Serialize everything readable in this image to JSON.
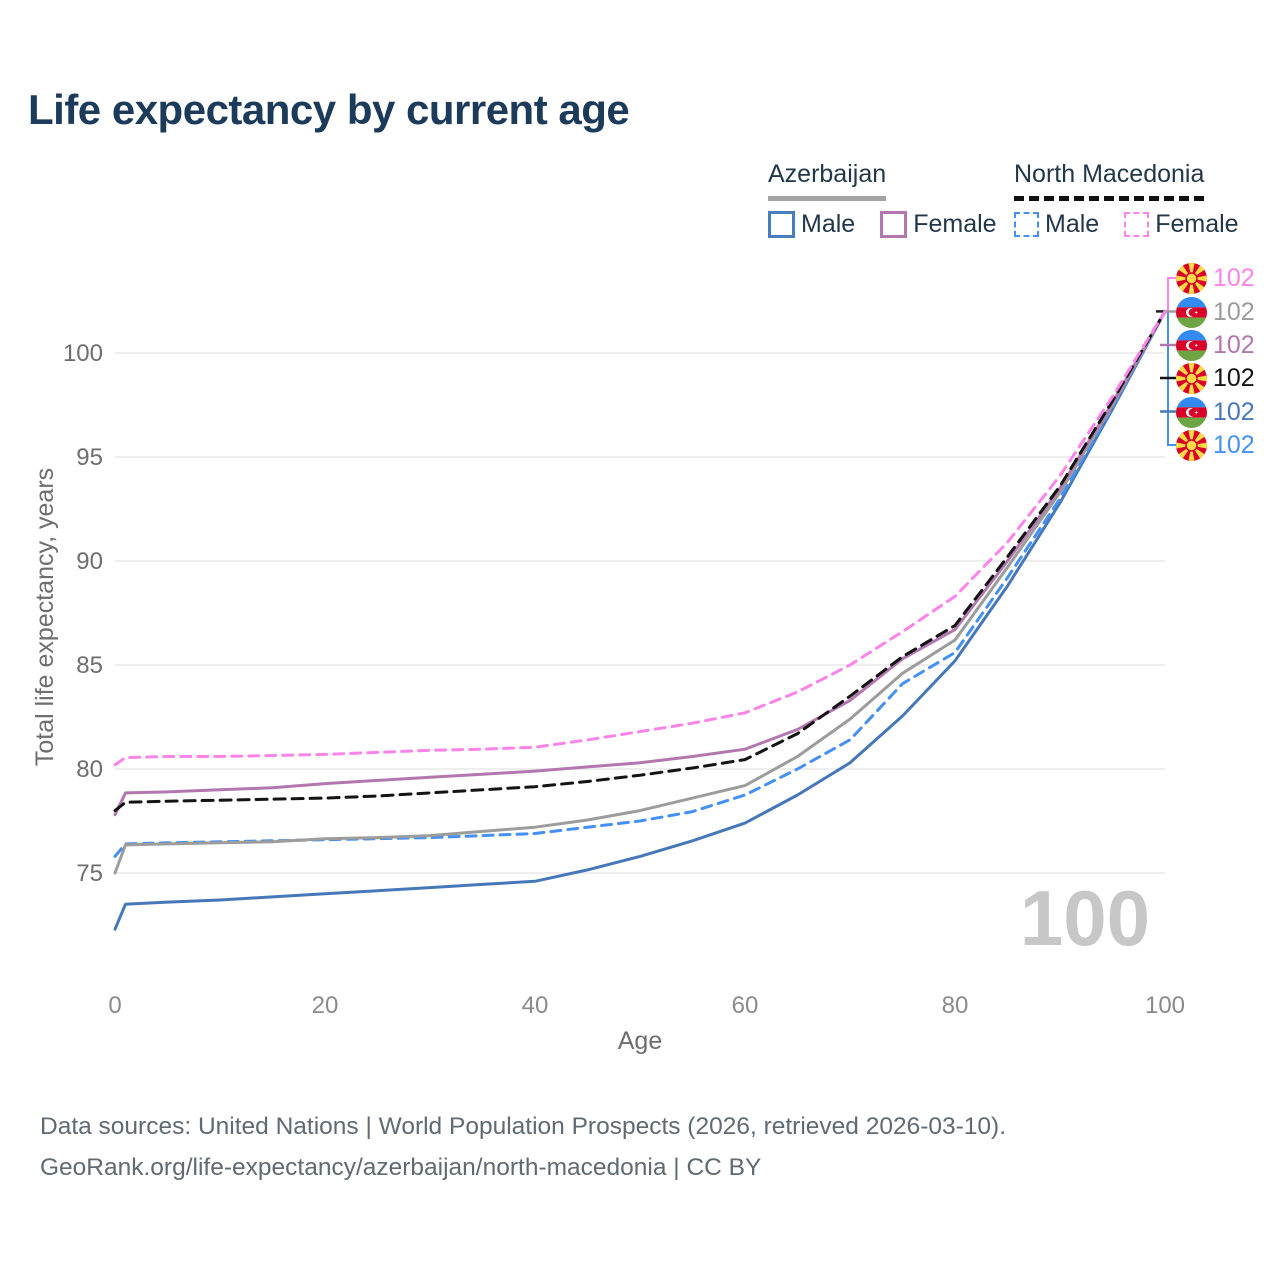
{
  "page": {
    "title": "Life expectancy by current age",
    "footer": {
      "line1": "Data sources: United Nations | World Population Prospects (2026, retrieved 2026-03-10).",
      "line2": "GeoRank.org/life-expectancy/azerbaijan/north-macedonia | CC BY"
    }
  },
  "legend": {
    "groups": [
      {
        "label": "Azerbaijan",
        "line_style": "solid",
        "underline_color": "#a3a3a3",
        "items": [
          {
            "label": "Male",
            "color": "#4a7cc0"
          },
          {
            "label": "Female",
            "color": "#b377af"
          }
        ]
      },
      {
        "label": "North Macedonia",
        "line_style": "dashed",
        "underline_color": "#111111",
        "items": [
          {
            "label": "Male",
            "color": "#4590f5"
          },
          {
            "label": "Female",
            "color": "#fb84e9"
          }
        ]
      }
    ]
  },
  "chart_data": {
    "type": "line",
    "title": "Life expectancy by current age",
    "xlabel": "Age",
    "ylabel": "Total life expectancy, years",
    "x_ticks": [
      0,
      20,
      40,
      60,
      80,
      100
    ],
    "y_ticks": [
      75,
      80,
      85,
      90,
      95,
      100
    ],
    "xlim": [
      0,
      100
    ],
    "ylim": [
      70,
      103
    ],
    "grid": "horizontal-only",
    "legend_position": "top-right",
    "age_counter_watermark": "100",
    "ages": [
      0,
      1,
      5,
      10,
      15,
      20,
      25,
      30,
      35,
      40,
      45,
      50,
      55,
      60,
      65,
      70,
      75,
      80,
      85,
      90,
      95,
      100
    ],
    "series": [
      {
        "country": "Azerbaijan",
        "label": "Male",
        "color": "#4678b9",
        "dash": null,
        "values": [
          72.3,
          73.5,
          73.6,
          73.7,
          73.85,
          74.0,
          74.15,
          74.3,
          74.45,
          74.6,
          75.15,
          75.8,
          76.55,
          77.4,
          78.75,
          80.3,
          82.55,
          85.2,
          88.8,
          92.8,
          97.3,
          102
        ]
      },
      {
        "country": "North Macedonia",
        "label": "Male",
        "color": "#4590f5",
        "dash": "10 7",
        "values": [
          75.8,
          76.4,
          76.45,
          76.5,
          76.55,
          76.6,
          76.65,
          76.7,
          76.8,
          76.9,
          77.2,
          77.5,
          77.95,
          78.75,
          80.0,
          81.4,
          84.1,
          85.6,
          89.2,
          93.0,
          97.4,
          102
        ]
      },
      {
        "country": "Azerbaijan",
        "label": "Azerbaijan",
        "color": "#9c9c9c",
        "dash": null,
        "values": [
          75.0,
          76.35,
          76.4,
          76.45,
          76.5,
          76.65,
          76.7,
          76.8,
          77.0,
          77.2,
          77.55,
          78.0,
          78.6,
          79.2,
          80.6,
          82.4,
          84.6,
          86.2,
          89.7,
          93.3,
          97.5,
          102
        ]
      },
      {
        "country": "Azerbaijan",
        "label": "Female",
        "color": "#b377af",
        "dash": null,
        "values": [
          77.8,
          78.85,
          78.9,
          79.0,
          79.1,
          79.3,
          79.45,
          79.6,
          79.75,
          79.9,
          80.1,
          80.3,
          80.6,
          80.95,
          81.9,
          83.3,
          85.3,
          86.7,
          90.0,
          93.5,
          97.6,
          102
        ]
      },
      {
        "country": "North Macedonia",
        "label": "North Macedonia",
        "color": "#141414",
        "dash": "11 7",
        "values": [
          78.0,
          78.4,
          78.45,
          78.5,
          78.55,
          78.6,
          78.7,
          78.85,
          79.0,
          79.15,
          79.4,
          79.7,
          80.05,
          80.45,
          81.7,
          83.5,
          85.4,
          86.9,
          90.2,
          93.6,
          97.7,
          102
        ]
      },
      {
        "country": "North Macedonia",
        "label": "Female",
        "color": "#fb84e9",
        "dash": "10 7",
        "values": [
          80.2,
          80.55,
          80.6,
          80.6,
          80.65,
          80.7,
          80.8,
          80.9,
          80.95,
          81.05,
          81.4,
          81.8,
          82.2,
          82.7,
          83.7,
          85.0,
          86.6,
          88.3,
          90.9,
          94.1,
          97.9,
          102
        ]
      }
    ],
    "end_labels": [
      {
        "series": "North Macedonia Female",
        "flag": "mk",
        "value": "102",
        "color": "#fb84e9"
      },
      {
        "series": "Azerbaijan",
        "flag": "az",
        "value": "102",
        "color": "#9c9c9c"
      },
      {
        "series": "Azerbaijan Female",
        "flag": "az",
        "value": "102",
        "color": "#b377af"
      },
      {
        "series": "North Macedonia",
        "flag": "mk",
        "value": "102",
        "color": "#141414"
      },
      {
        "series": "Azerbaijan Male",
        "flag": "az",
        "value": "102",
        "color": "#4678b9"
      },
      {
        "series": "North Macedonia Male",
        "flag": "mk",
        "value": "102",
        "color": "#4590f5"
      }
    ]
  }
}
